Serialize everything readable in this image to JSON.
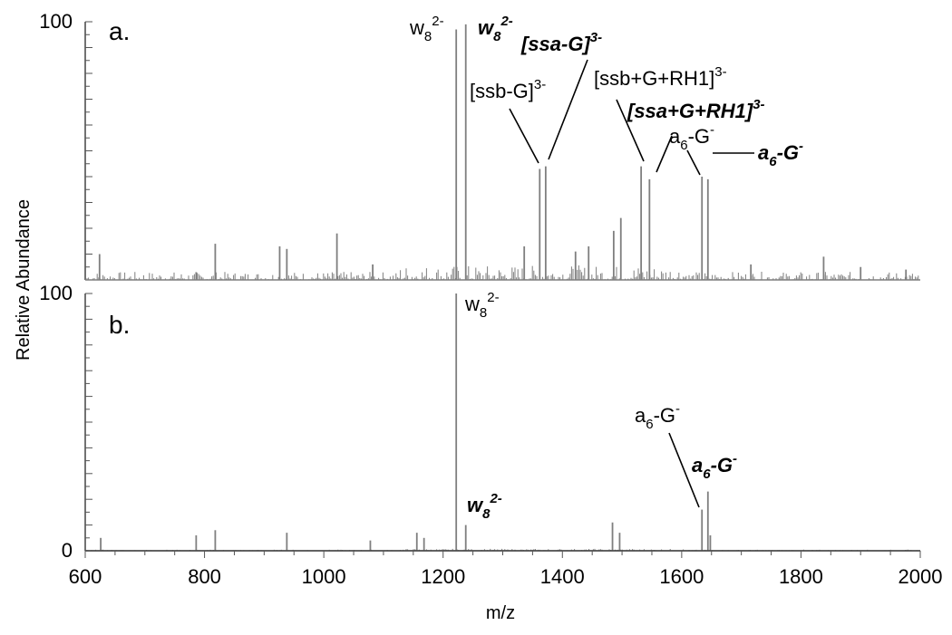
{
  "chart_data": {
    "type": "line",
    "xlabel": "m/z",
    "ylabel": "Relative Abundance",
    "xlim": [
      600,
      2000
    ],
    "xticks": [
      600,
      800,
      1000,
      1200,
      1400,
      1600,
      1800,
      2000
    ],
    "panels": [
      {
        "panel_label": "a.",
        "ylim": [
          0,
          100
        ],
        "ytick_labels": [
          "100"
        ],
        "line_color": "#7f7f7f",
        "peaks": [
          {
            "x": 624,
            "y": 10
          },
          {
            "x": 786,
            "y": 3
          },
          {
            "x": 818,
            "y": 14
          },
          {
            "x": 926,
            "y": 13
          },
          {
            "x": 938,
            "y": 12
          },
          {
            "x": 1022,
            "y": 18
          },
          {
            "x": 1082,
            "y": 6
          },
          {
            "x": 1222,
            "y": 97
          },
          {
            "x": 1238,
            "y": 99
          },
          {
            "x": 1336,
            "y": 13
          },
          {
            "x": 1362,
            "y": 43
          },
          {
            "x": 1372,
            "y": 44
          },
          {
            "x": 1422,
            "y": 11
          },
          {
            "x": 1444,
            "y": 13
          },
          {
            "x": 1486,
            "y": 19
          },
          {
            "x": 1498,
            "y": 24
          },
          {
            "x": 1532,
            "y": 44
          },
          {
            "x": 1546,
            "y": 39
          },
          {
            "x": 1634,
            "y": 40
          },
          {
            "x": 1644,
            "y": 39
          },
          {
            "x": 1716,
            "y": 6
          },
          {
            "x": 1838,
            "y": 9
          },
          {
            "x": 1900,
            "y": 5
          },
          {
            "x": 1976,
            "y": 4
          }
        ],
        "annotations": [
          {
            "base": "w",
            "sub": "8",
            "sup": "2-",
            "bold": false
          },
          {
            "base": "w",
            "sub": "8",
            "sup": "2-",
            "bold": true
          },
          {
            "base": "[ssa-G]",
            "sub": "",
            "sup": "3-",
            "bold": true
          },
          {
            "base": "[ssb-G]",
            "sub": "",
            "sup": "3-",
            "bold": false
          },
          {
            "base": "[ssb+G+RH1]",
            "sub": "",
            "sup": "3-",
            "bold": false
          },
          {
            "base": "[ssa+G+RH1]",
            "sub": "",
            "sup": "3-",
            "bold": true
          },
          {
            "base": "a",
            "sub": "6",
            "sup": "",
            "tail": "-G",
            "tailsup": "-",
            "bold": false
          },
          {
            "base": "a",
            "sub": "6",
            "sup": "",
            "tail": "-G",
            "tailsup": "-",
            "bold": true
          }
        ]
      },
      {
        "panel_label": "b.",
        "ylim": [
          0,
          100
        ],
        "ytick_labels": [
          "100",
          "0"
        ],
        "line_color": "#7f7f7f",
        "peaks": [
          {
            "x": 626,
            "y": 5
          },
          {
            "x": 786,
            "y": 6
          },
          {
            "x": 818,
            "y": 8
          },
          {
            "x": 938,
            "y": 7
          },
          {
            "x": 1078,
            "y": 4
          },
          {
            "x": 1156,
            "y": 7
          },
          {
            "x": 1168,
            "y": 5
          },
          {
            "x": 1222,
            "y": 100
          },
          {
            "x": 1238,
            "y": 10
          },
          {
            "x": 1484,
            "y": 11
          },
          {
            "x": 1496,
            "y": 7
          },
          {
            "x": 1634,
            "y": 16
          },
          {
            "x": 1644,
            "y": 23
          },
          {
            "x": 1648,
            "y": 6
          }
        ],
        "annotations": [
          {
            "base": "w",
            "sub": "8",
            "sup": "2-",
            "bold": false
          },
          {
            "base": "w",
            "sub": "8",
            "sup": "2-",
            "bold": true
          },
          {
            "base": "a",
            "sub": "6",
            "sup": "",
            "tail": "-G",
            "tailsup": "-",
            "bold": false
          },
          {
            "base": "a",
            "sub": "6",
            "sup": "",
            "tail": "-G",
            "tailsup": "-",
            "bold": true
          }
        ]
      }
    ]
  }
}
